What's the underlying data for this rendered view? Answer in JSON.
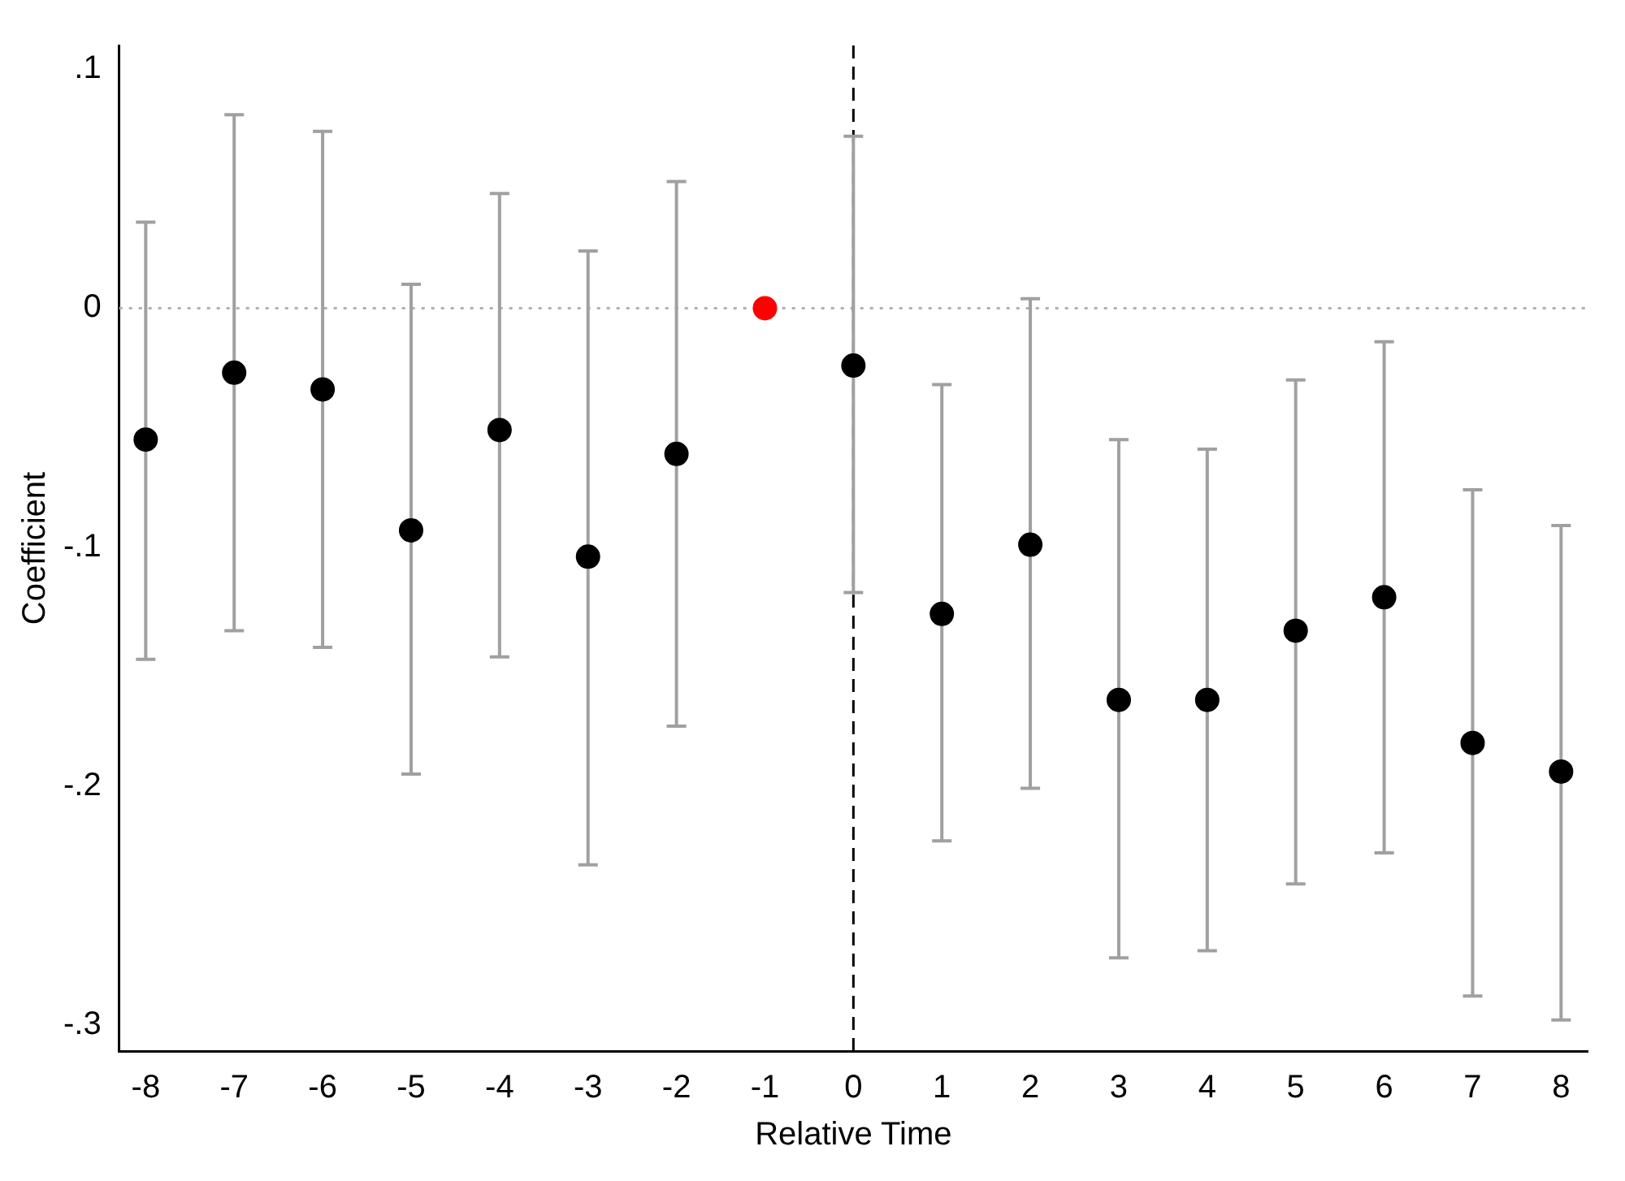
{
  "chart_data": {
    "type": "scatter",
    "xlabel": "Relative Time",
    "ylabel": "Coefficient",
    "x": [
      -8,
      -7,
      -6,
      -5,
      -4,
      -3,
      -2,
      -1,
      0,
      1,
      2,
      3,
      4,
      5,
      6,
      7,
      8
    ],
    "values": [
      -0.055,
      -0.027,
      -0.034,
      -0.093,
      -0.051,
      -0.104,
      -0.061,
      0,
      -0.024,
      -0.128,
      -0.099,
      -0.164,
      -0.164,
      -0.135,
      -0.121,
      -0.182,
      -0.194
    ],
    "errors": [
      [
        -0.147,
        0.036
      ],
      [
        -0.135,
        0.081
      ],
      [
        -0.142,
        0.074
      ],
      [
        -0.195,
        0.01
      ],
      [
        -0.146,
        0.048
      ],
      [
        -0.233,
        0.024
      ],
      [
        -0.175,
        0.053
      ],
      null,
      [
        -0.119,
        0.072
      ],
      [
        -0.223,
        -0.032
      ],
      [
        -0.201,
        0.004
      ],
      [
        -0.272,
        -0.055
      ],
      [
        -0.269,
        -0.059
      ],
      [
        -0.241,
        -0.03
      ],
      [
        -0.228,
        -0.014
      ],
      [
        -0.288,
        -0.076
      ],
      [
        -0.298,
        -0.091
      ]
    ],
    "colors": [
      "#000000",
      "#000000",
      "#000000",
      "#000000",
      "#000000",
      "#000000",
      "#000000",
      "#ff0000",
      "#000000",
      "#000000",
      "#000000",
      "#000000",
      "#000000",
      "#000000",
      "#000000",
      "#000000",
      "#000000"
    ],
    "marker": "circle",
    "grid": false,
    "legend": false,
    "xlim": [
      -8.3,
      8.3
    ],
    "xticks": [
      -8,
      -7,
      -6,
      -5,
      -4,
      -3,
      -2,
      -1,
      0,
      1,
      2,
      3,
      4,
      5,
      6,
      7,
      8
    ],
    "ylim": [
      -0.311,
      0.11
    ],
    "yticks": [
      {
        "value": -0.3,
        "label": "-.3"
      },
      {
        "value": -0.2,
        "label": "-.2"
      },
      {
        "value": -0.1,
        "label": "-.1"
      },
      0,
      {
        "value": 0.1,
        "label": ".1"
      }
    ],
    "ref_lines": [
      {
        "axis": "y",
        "value": 0,
        "color": "#b0b0b0",
        "line_style": "dotted"
      },
      {
        "axis": "x",
        "value": 0,
        "color": "#000000",
        "line_style": "dashed"
      }
    ]
  }
}
